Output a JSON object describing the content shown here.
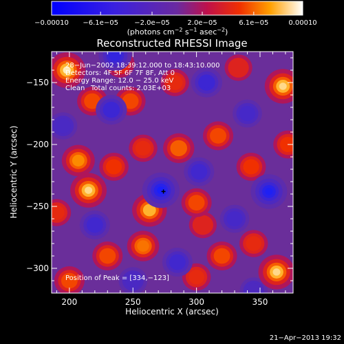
{
  "chart_data": {
    "type": "heatmap",
    "title": "Reconstructed RHESSI Image",
    "xlabel": "Heliocentric X (arcsec)",
    "ylabel": "Heliocentric Y (arcsec)",
    "xlim": [
      186,
      376
    ],
    "ylim": [
      -320,
      -125
    ],
    "x_ticks": [
      200,
      250,
      300,
      350
    ],
    "y_ticks": [
      -150,
      -200,
      -250,
      -300
    ],
    "x_tick_labels": [
      "200",
      "250",
      "300",
      "350"
    ],
    "y_tick_labels": [
      "−150",
      "−200",
      "−250",
      "−300"
    ],
    "colorbar": {
      "min": -0.0001,
      "max": 0.0001,
      "tick_values": [
        -0.0001,
        -6.1e-05,
        -2e-05,
        2e-05,
        6.1e-05,
        0.0001
      ],
      "tick_labels": [
        "−0.00010",
        "−6.1e−05",
        "−2.0e−05",
        "2.0e−05",
        "6.1e−05",
        "0.00010"
      ],
      "unit_main": "(photons cm",
      "unit_sup1": "−2",
      "unit_mid": " s",
      "unit_sup2": "−1",
      "unit_end": " asec",
      "unit_sup3": "−2",
      "unit_close": ")"
    },
    "annotations": {
      "time_range": "28−Jun−2002 18:39:12.000 to 18:43:10.000",
      "detectors": "Detectors: 4F 5F 6F 7F 8F, Att 0",
      "energy_range": "Energy Range: 12.0 − 25.0 keV",
      "clean_label": "Clean",
      "total_counts": "Total counts: 2.03E+03",
      "peak_position": "Position of Peak = [334,−123]"
    },
    "sources": [
      {
        "x": 198,
        "y": -140,
        "v": 0.95
      },
      {
        "x": 218,
        "y": -165,
        "v": 0.55
      },
      {
        "x": 207,
        "y": -213,
        "v": 0.7
      },
      {
        "x": 215,
        "y": -237,
        "v": 0.9
      },
      {
        "x": 235,
        "y": -218,
        "v": 0.5
      },
      {
        "x": 248,
        "y": -165,
        "v": 0.55
      },
      {
        "x": 258,
        "y": -203,
        "v": 0.45
      },
      {
        "x": 263,
        "y": -253,
        "v": 0.8
      },
      {
        "x": 258,
        "y": -282,
        "v": 0.65
      },
      {
        "x": 300,
        "y": -247,
        "v": 0.55
      },
      {
        "x": 286,
        "y": -203,
        "v": 0.6
      },
      {
        "x": 317,
        "y": -193,
        "v": 0.55
      },
      {
        "x": 333,
        "y": -138,
        "v": 0.4
      },
      {
        "x": 368,
        "y": -153,
        "v": 0.9
      },
      {
        "x": 343,
        "y": -218,
        "v": 0.5
      },
      {
        "x": 363,
        "y": -303,
        "v": 0.9
      },
      {
        "x": 320,
        "y": -290,
        "v": 0.55
      },
      {
        "x": 300,
        "y": -307,
        "v": 0.45
      },
      {
        "x": 230,
        "y": -290,
        "v": 0.55
      },
      {
        "x": 200,
        "y": -310,
        "v": 0.55
      },
      {
        "x": 190,
        "y": -255,
        "v": 0.45
      },
      {
        "x": 283,
        "y": -150,
        "v": 0.45
      },
      {
        "x": 372,
        "y": -200,
        "v": 0.5
      },
      {
        "x": 240,
        "y": -135,
        "v": 0.45
      },
      {
        "x": 305,
        "y": -265,
        "v": 0.4
      },
      {
        "x": 345,
        "y": -280,
        "v": 0.45
      },
      {
        "x": 236,
        "y": -128,
        "v": -0.7
      },
      {
        "x": 233,
        "y": -172,
        "v": -0.6
      },
      {
        "x": 272,
        "y": -237,
        "v": -0.95
      },
      {
        "x": 357,
        "y": -238,
        "v": -0.9
      },
      {
        "x": 308,
        "y": -150,
        "v": -0.6
      },
      {
        "x": 302,
        "y": -222,
        "v": -0.55
      },
      {
        "x": 220,
        "y": -265,
        "v": -0.55
      },
      {
        "x": 330,
        "y": -260,
        "v": -0.5
      },
      {
        "x": 285,
        "y": -295,
        "v": -0.55
      },
      {
        "x": 340,
        "y": -175,
        "v": -0.5
      },
      {
        "x": 195,
        "y": -185,
        "v": -0.45
      },
      {
        "x": 250,
        "y": -310,
        "v": -0.45
      },
      {
        "x": 345,
        "y": -318,
        "v": -0.4
      }
    ],
    "crosses": [
      {
        "x": 274,
        "y": -238
      }
    ]
  },
  "footer": {
    "timestamp": "21−Apr−2013 19:32"
  }
}
